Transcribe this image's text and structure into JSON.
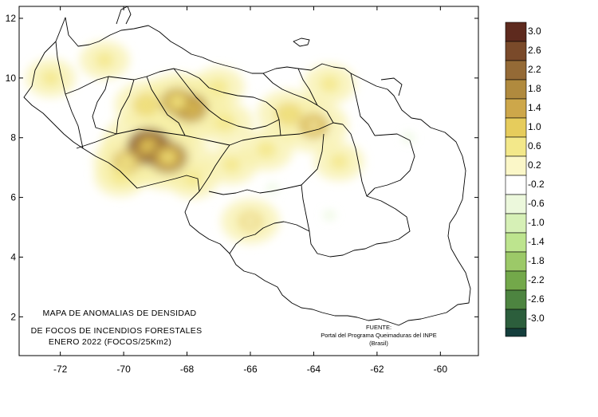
{
  "map": {
    "title_lines": [
      "MAPA DE ANOMALIAS DE DENSIDAD",
      "DE FOCOS DE INCENDIOS FORESTALES",
      "ENERO 2022 (FOCOS/25Km2)"
    ],
    "source_lines": [
      "FUENTE:",
      "Portal del Programa Queimaduras del INPE",
      "(Brasil)"
    ],
    "x_axis": {
      "ticks": [
        -72,
        -70,
        -68,
        -66,
        -64,
        -62,
        -60
      ],
      "range": [
        -73.3,
        -58.8
      ]
    },
    "y_axis": {
      "ticks": [
        2,
        4,
        6,
        8,
        10,
        12
      ],
      "range": [
        0.7,
        12.4
      ]
    }
  },
  "legend": {
    "levels": [
      {
        "label": "3.0",
        "color": "#5e2a1e"
      },
      {
        "label": "2.6",
        "color": "#7a4a2a"
      },
      {
        "label": "2.2",
        "color": "#946a36"
      },
      {
        "label": "1.8",
        "color": "#b08a3e"
      },
      {
        "label": "1.4",
        "color": "#cda74a"
      },
      {
        "label": "1.0",
        "color": "#e6cc5c"
      },
      {
        "label": "0.6",
        "color": "#f3e88a"
      },
      {
        "label": "0.2",
        "color": "#fbf7c8"
      },
      {
        "label": "-0.2",
        "color": "#ffffff"
      },
      {
        "label": "-0.6",
        "color": "#ecf8dc"
      },
      {
        "label": "-1.0",
        "color": "#d6f0b6"
      },
      {
        "label": "-1.4",
        "color": "#bde48e"
      },
      {
        "label": "-1.8",
        "color": "#9cc968"
      },
      {
        "label": "-2.2",
        "color": "#73a84a"
      },
      {
        "label": "-2.6",
        "color": "#4d8440"
      },
      {
        "label": "-3.0",
        "color": "#2c5e3c"
      }
    ],
    "bottom_color": "#143e3c"
  },
  "anomaly_hotspots": [
    {
      "lon": -69.2,
      "lat": 7.7,
      "value": 2.8
    },
    {
      "lon": -68.6,
      "lat": 7.35,
      "value": 2.3
    },
    {
      "lon": -69.9,
      "lat": 7.2,
      "value": 1.4
    },
    {
      "lon": -67.9,
      "lat": 9.0,
      "value": 2.0
    },
    {
      "lon": -68.3,
      "lat": 9.2,
      "value": 1.8
    },
    {
      "lon": -69.3,
      "lat": 9.1,
      "value": 1.2
    },
    {
      "lon": -64.0,
      "lat": 8.4,
      "value": 1.5
    },
    {
      "lon": -64.8,
      "lat": 8.8,
      "value": 1.2
    },
    {
      "lon": -66.0,
      "lat": 5.2,
      "value": 1.0
    },
    {
      "lon": -70.1,
      "lat": 6.7,
      "value": 0.7
    },
    {
      "lon": -66.8,
      "lat": 8.5,
      "value": 0.9
    },
    {
      "lon": -65.5,
      "lat": 7.6,
      "value": 0.8
    },
    {
      "lon": -67.0,
      "lat": 9.7,
      "value": 0.7
    },
    {
      "lon": -70.6,
      "lat": 10.6,
      "value": 0.6
    },
    {
      "lon": -72.3,
      "lat": 10.0,
      "value": 0.6
    },
    {
      "lon": -63.5,
      "lat": 9.8,
      "value": 0.7
    },
    {
      "lon": -66.6,
      "lat": 7.1,
      "value": 0.7
    },
    {
      "lon": -63.2,
      "lat": 7.2,
      "value": 0.6
    },
    {
      "lon": -67.8,
      "lat": 6.6,
      "value": 0.6
    }
  ]
}
